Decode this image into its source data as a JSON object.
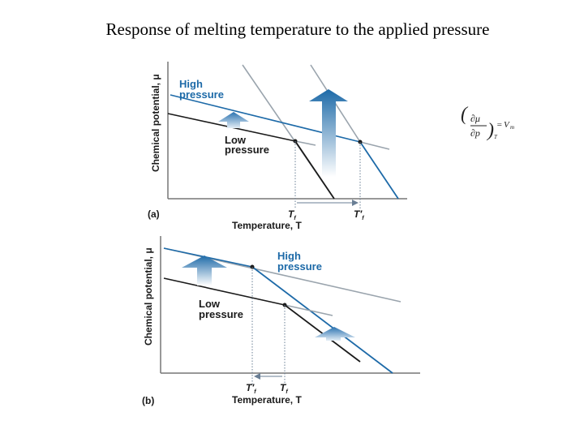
{
  "title": "Response of melting temperature to the applied pressure",
  "equation": {
    "numerator": "∂μ",
    "denominator": "∂p",
    "subscript": "T",
    "rhs": "V",
    "rhs_subscript": "m"
  },
  "panel_a": {
    "label": "(a)",
    "ylabel": "Chemical potential, μ",
    "xlabel": "Temperature, T",
    "high_label_1": "High",
    "high_label_2": "pressure",
    "low_label_1": "Low",
    "low_label_2": "pressure",
    "tick_1": "T",
    "tick_1_sub": "f",
    "tick_2": "T′",
    "tick_2_sub": "f"
  },
  "panel_b": {
    "label": "(b)",
    "ylabel": "Chemical potential, μ",
    "xlabel": "Temperature, T",
    "high_label_1": "High",
    "high_label_2": "pressure",
    "low_label_1": "Low",
    "low_label_2": "pressure",
    "tick_1": "T′",
    "tick_1_sub": "f",
    "tick_2": "T",
    "tick_2_sub": "f"
  },
  "colors": {
    "high": "#1d6aa8",
    "low": "#1a1a1a",
    "gray": "#9aa4ad"
  }
}
